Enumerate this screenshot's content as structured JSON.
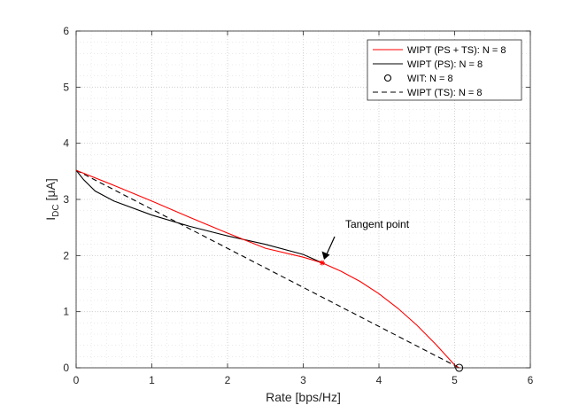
{
  "chart_data": {
    "type": "line",
    "xlabel": "Rate [bps/Hz]",
    "ylabel_main": "I",
    "ylabel_sub": "DC",
    "ylabel_unit": " [μA]",
    "xlim": [
      0,
      6
    ],
    "ylim": [
      0,
      6
    ],
    "xticks": [
      "0",
      "1",
      "2",
      "3",
      "4",
      "5",
      "6"
    ],
    "yticks": [
      "0",
      "1",
      "2",
      "3",
      "4",
      "5",
      "6"
    ],
    "grid": "major and minor dotted",
    "legend_position": "top-right",
    "series": [
      {
        "name": "WIPT (PS + TS): N = 8",
        "color": "#ff0000",
        "dash": "solid",
        "x": [
          0,
          0.5,
          1.0,
          1.5,
          2.0,
          2.5,
          3.0,
          3.25,
          3.5,
          3.75,
          4.0,
          4.25,
          4.5,
          4.75,
          5.0,
          5.06
        ],
        "y": [
          3.52,
          3.25,
          2.97,
          2.68,
          2.4,
          2.13,
          1.97,
          1.87,
          1.72,
          1.54,
          1.32,
          1.06,
          0.76,
          0.42,
          0.05,
          0
        ]
      },
      {
        "name": "WIPT (PS): N = 8",
        "color": "#000000",
        "dash": "solid",
        "x": [
          0,
          0.1,
          0.25,
          0.5,
          1.0,
          1.5,
          2.0,
          2.5,
          3.0,
          3.25
        ],
        "y": [
          3.52,
          3.35,
          3.15,
          2.97,
          2.72,
          2.52,
          2.35,
          2.2,
          2.02,
          1.87
        ]
      },
      {
        "name": "WIT: N = 8",
        "color": "#000000",
        "marker": "circle",
        "x": [
          5.06
        ],
        "y": [
          0
        ]
      },
      {
        "name": "WIPT (TS): N = 8",
        "color": "#000000",
        "dash": "dashed",
        "x": [
          0,
          5.06
        ],
        "y": [
          3.52,
          0
        ]
      }
    ],
    "annotations": [
      {
        "text": "Tangent point",
        "x": 3.25,
        "y": 1.87,
        "marker": "asterisk",
        "marker_color": "#ff0000"
      }
    ]
  }
}
